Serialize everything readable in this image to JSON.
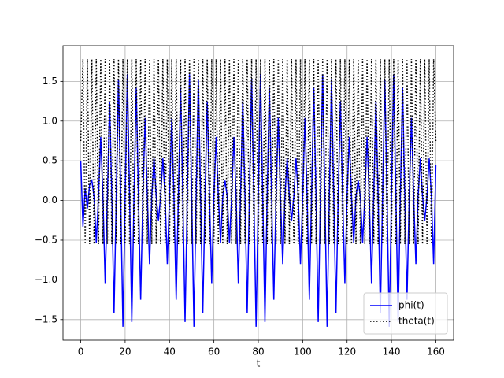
{
  "chart_data": {
    "type": "line",
    "xlabel": "t",
    "x": [
      0,
      1,
      2,
      3,
      4,
      5,
      6,
      7,
      8,
      9,
      10,
      11,
      12,
      13,
      14,
      15,
      16,
      17,
      18,
      19,
      20,
      21,
      22,
      23,
      24,
      25,
      26,
      27,
      28,
      29,
      30,
      31,
      32,
      33,
      34,
      35,
      36,
      37,
      38,
      39,
      40,
      41,
      42,
      43,
      44,
      45,
      46,
      47,
      48,
      49,
      50,
      51,
      52,
      53,
      54,
      55,
      56,
      57,
      58,
      59,
      60,
      61,
      62,
      63,
      64,
      65,
      66,
      67,
      68,
      69,
      70,
      71,
      72,
      73,
      74,
      75,
      76,
      77,
      78,
      79,
      80,
      81,
      82,
      83,
      84,
      85,
      86,
      87,
      88,
      89,
      90,
      91,
      92,
      93,
      94,
      95,
      96,
      97,
      98,
      99,
      100,
      101,
      102,
      103,
      104,
      105,
      106,
      107,
      108,
      109,
      110,
      111,
      112,
      113,
      114,
      115,
      116,
      117,
      118,
      119,
      120,
      121,
      122,
      123,
      124,
      125,
      126,
      127,
      128,
      129,
      130,
      131,
      132,
      133,
      134,
      135,
      136,
      137,
      138,
      139,
      140,
      141,
      142,
      143,
      144,
      145,
      146,
      147,
      148,
      149,
      150,
      151,
      152,
      153,
      154,
      155,
      156,
      157,
      158,
      159,
      160
    ],
    "series": [
      {
        "name": "phi(t)",
        "color": "#0000ff",
        "style": "solid",
        "values": [
          0.5,
          -0.33,
          0.15,
          -0.1,
          0.2,
          0.25,
          0.05,
          -0.53,
          0.05,
          0.8,
          0.05,
          -1.04,
          0.05,
          1.25,
          0.05,
          -1.42,
          0.05,
          1.53,
          0.05,
          -1.59,
          0.05,
          1.59,
          0.05,
          -1.53,
          0.05,
          1.42,
          0.05,
          -1.25,
          0.05,
          1.04,
          0.05,
          -0.8,
          0.05,
          0.53,
          0.05,
          -0.25,
          0.05,
          0.53,
          0.05,
          -0.8,
          0.05,
          1.04,
          0.05,
          -1.25,
          0.05,
          1.42,
          0.05,
          -1.53,
          0.05,
          1.59,
          0.05,
          -1.59,
          0.05,
          1.53,
          0.05,
          -1.42,
          0.05,
          1.25,
          0.05,
          -1.04,
          0.05,
          0.8,
          0.05,
          -0.53,
          0.05,
          0.25,
          0.05,
          -0.53,
          0.05,
          0.8,
          0.05,
          -1.04,
          0.05,
          1.25,
          0.05,
          -1.42,
          0.05,
          1.53,
          0.05,
          -1.59,
          0.05,
          1.59,
          0.05,
          -1.53,
          0.05,
          1.42,
          0.05,
          -1.25,
          0.05,
          1.04,
          0.05,
          -0.8,
          0.05,
          0.53,
          0.05,
          -0.25,
          0.05,
          0.53,
          0.05,
          -0.8,
          0.05,
          1.04,
          0.05,
          -1.25,
          0.05,
          1.42,
          0.05,
          -1.53,
          0.05,
          1.59,
          0.05,
          -1.59,
          0.05,
          1.53,
          0.05,
          -1.42,
          0.05,
          1.25,
          0.05,
          -1.04,
          0.05,
          0.8,
          0.05,
          -0.53,
          0.05,
          0.25,
          0.05,
          -0.53,
          0.05,
          0.8,
          0.05,
          -1.04,
          0.05,
          1.25,
          0.05,
          -1.42,
          0.05,
          1.53,
          0.05,
          -1.59,
          0.05,
          1.59,
          0.05,
          -1.53,
          0.05,
          1.42,
          0.05,
          -1.25,
          0.05,
          1.04,
          0.05,
          -0.8,
          0.05,
          0.53,
          0.05,
          -0.25,
          0.05,
          0.53,
          0.05,
          -0.8,
          0.45
        ]
      },
      {
        "name": "theta(t)",
        "color": "#000000",
        "style": "dotted",
        "values": [
          0.75,
          1.78,
          -0.55,
          1.78,
          -0.55,
          1.78,
          -0.55,
          1.78,
          -0.55,
          1.78,
          -0.55,
          1.78,
          -0.55,
          1.78,
          -0.55,
          1.78,
          -0.55,
          1.78,
          -0.55,
          1.78,
          -0.55,
          1.78,
          -0.55,
          1.78,
          -0.55,
          1.78,
          -0.55,
          1.78,
          -0.55,
          1.78,
          -0.55,
          1.78,
          -0.55,
          1.78,
          -0.55,
          1.78,
          -0.55,
          1.78,
          -0.55,
          1.78,
          -0.55,
          1.78,
          -0.55,
          1.78,
          -0.55,
          1.78,
          -0.55,
          1.78,
          -0.55,
          1.78,
          -0.55,
          1.78,
          -0.55,
          1.78,
          -0.55,
          1.78,
          -0.55,
          1.78,
          -0.55,
          1.78,
          -0.55,
          1.78,
          -0.55,
          1.78,
          -0.55,
          1.78,
          -0.55,
          1.78,
          -0.55,
          1.78,
          -0.55,
          1.78,
          -0.55,
          1.78,
          -0.55,
          1.78,
          -0.55,
          1.78,
          -0.55,
          1.78,
          -0.55,
          1.78,
          -0.55,
          1.78,
          -0.55,
          1.78,
          -0.55,
          1.78,
          -0.55,
          1.78,
          -0.55,
          1.78,
          -0.55,
          1.78,
          -0.55,
          1.78,
          -0.55,
          1.78,
          -0.55,
          1.78,
          -0.55,
          1.78,
          -0.55,
          1.78,
          -0.55,
          1.78,
          -0.55,
          1.78,
          -0.55,
          1.78,
          -0.55,
          1.78,
          -0.55,
          1.78,
          -0.55,
          1.78,
          -0.55,
          1.78,
          -0.55,
          1.78,
          -0.55,
          1.78,
          -0.55,
          1.78,
          -0.55,
          1.78,
          -0.55,
          1.78,
          -0.55,
          1.78,
          -0.55,
          1.78,
          -0.55,
          1.78,
          -0.55,
          1.78,
          -0.55,
          1.78,
          -0.55,
          1.78,
          -0.55,
          1.78,
          -0.55,
          1.78,
          -0.55,
          1.78,
          -0.55,
          1.78,
          -0.55,
          1.78,
          -0.55,
          1.78,
          -0.55,
          1.78,
          -0.55,
          1.78,
          -0.55,
          1.78,
          -0.55,
          1.78,
          0.75
        ]
      }
    ],
    "xlim": [
      -8,
      168
    ],
    "xticks": [
      0,
      20,
      40,
      60,
      80,
      100,
      120,
      140,
      160
    ],
    "ylim": [
      -1.76,
      1.95
    ],
    "yticks": [
      {
        "value": -1.5,
        "label": "−1.5"
      },
      {
        "value": -1,
        "label": "−1.0"
      },
      {
        "value": -0.5,
        "label": "−0.5"
      },
      {
        "value": 0,
        "label": "0.0"
      },
      {
        "value": 0.5,
        "label": "0.5"
      },
      {
        "value": 1,
        "label": "1.0"
      },
      {
        "value": 1.5,
        "label": "1.5"
      }
    ],
    "grid": true,
    "legend": "lower right"
  }
}
